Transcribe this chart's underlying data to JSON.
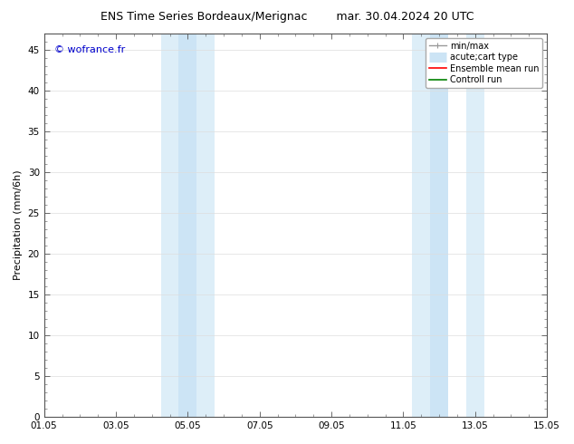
{
  "title_left": "ENS Time Series Bordeaux/Merignac",
  "title_right": "mar. 30.04.2024 20 UTC",
  "xlabel_ticks": [
    "01.05",
    "03.05",
    "05.05",
    "07.05",
    "09.05",
    "11.05",
    "13.05",
    "15.05"
  ],
  "ylabel": "Precipitation (mm/6h)",
  "ylim": [
    0,
    47
  ],
  "yticks": [
    0,
    5,
    10,
    15,
    20,
    25,
    30,
    35,
    40,
    45
  ],
  "xlim_start": 0.0,
  "xlim_end": 14.0,
  "watermark": "© wofrance.fr",
  "watermark_color": "#0000cc",
  "bg_color": "#ffffff",
  "plot_bg_color": "#ffffff",
  "shaded_bands": [
    {
      "x_start": 3.25,
      "x_end": 3.75,
      "color": "#ddeef8"
    },
    {
      "x_start": 3.75,
      "x_end": 4.25,
      "color": "#cce4f5"
    },
    {
      "x_start": 4.25,
      "x_end": 4.75,
      "color": "#ddeef8"
    },
    {
      "x_start": 10.25,
      "x_end": 10.75,
      "color": "#ddeef8"
    },
    {
      "x_start": 10.75,
      "x_end": 11.25,
      "color": "#cce4f5"
    },
    {
      "x_start": 11.75,
      "x_end": 12.25,
      "color": "#ddeef8"
    }
  ],
  "legend_entries": [
    {
      "label": "min/max",
      "color": "#999999",
      "lw": 1.0,
      "style": "line_with_caps"
    },
    {
      "label": "acute;cart type",
      "color": "#cce4f5",
      "lw": 8,
      "style": "thick_line"
    },
    {
      "label": "Ensemble mean run",
      "color": "#ff0000",
      "lw": 1.2,
      "style": "line"
    },
    {
      "label": "Controll run",
      "color": "#008000",
      "lw": 1.2,
      "style": "line"
    }
  ],
  "tick_label_fontsize": 7.5,
  "axis_label_fontsize": 8,
  "title_fontsize": 9,
  "legend_fontsize": 7,
  "grid_color": "#dddddd",
  "spine_color": "#555555"
}
